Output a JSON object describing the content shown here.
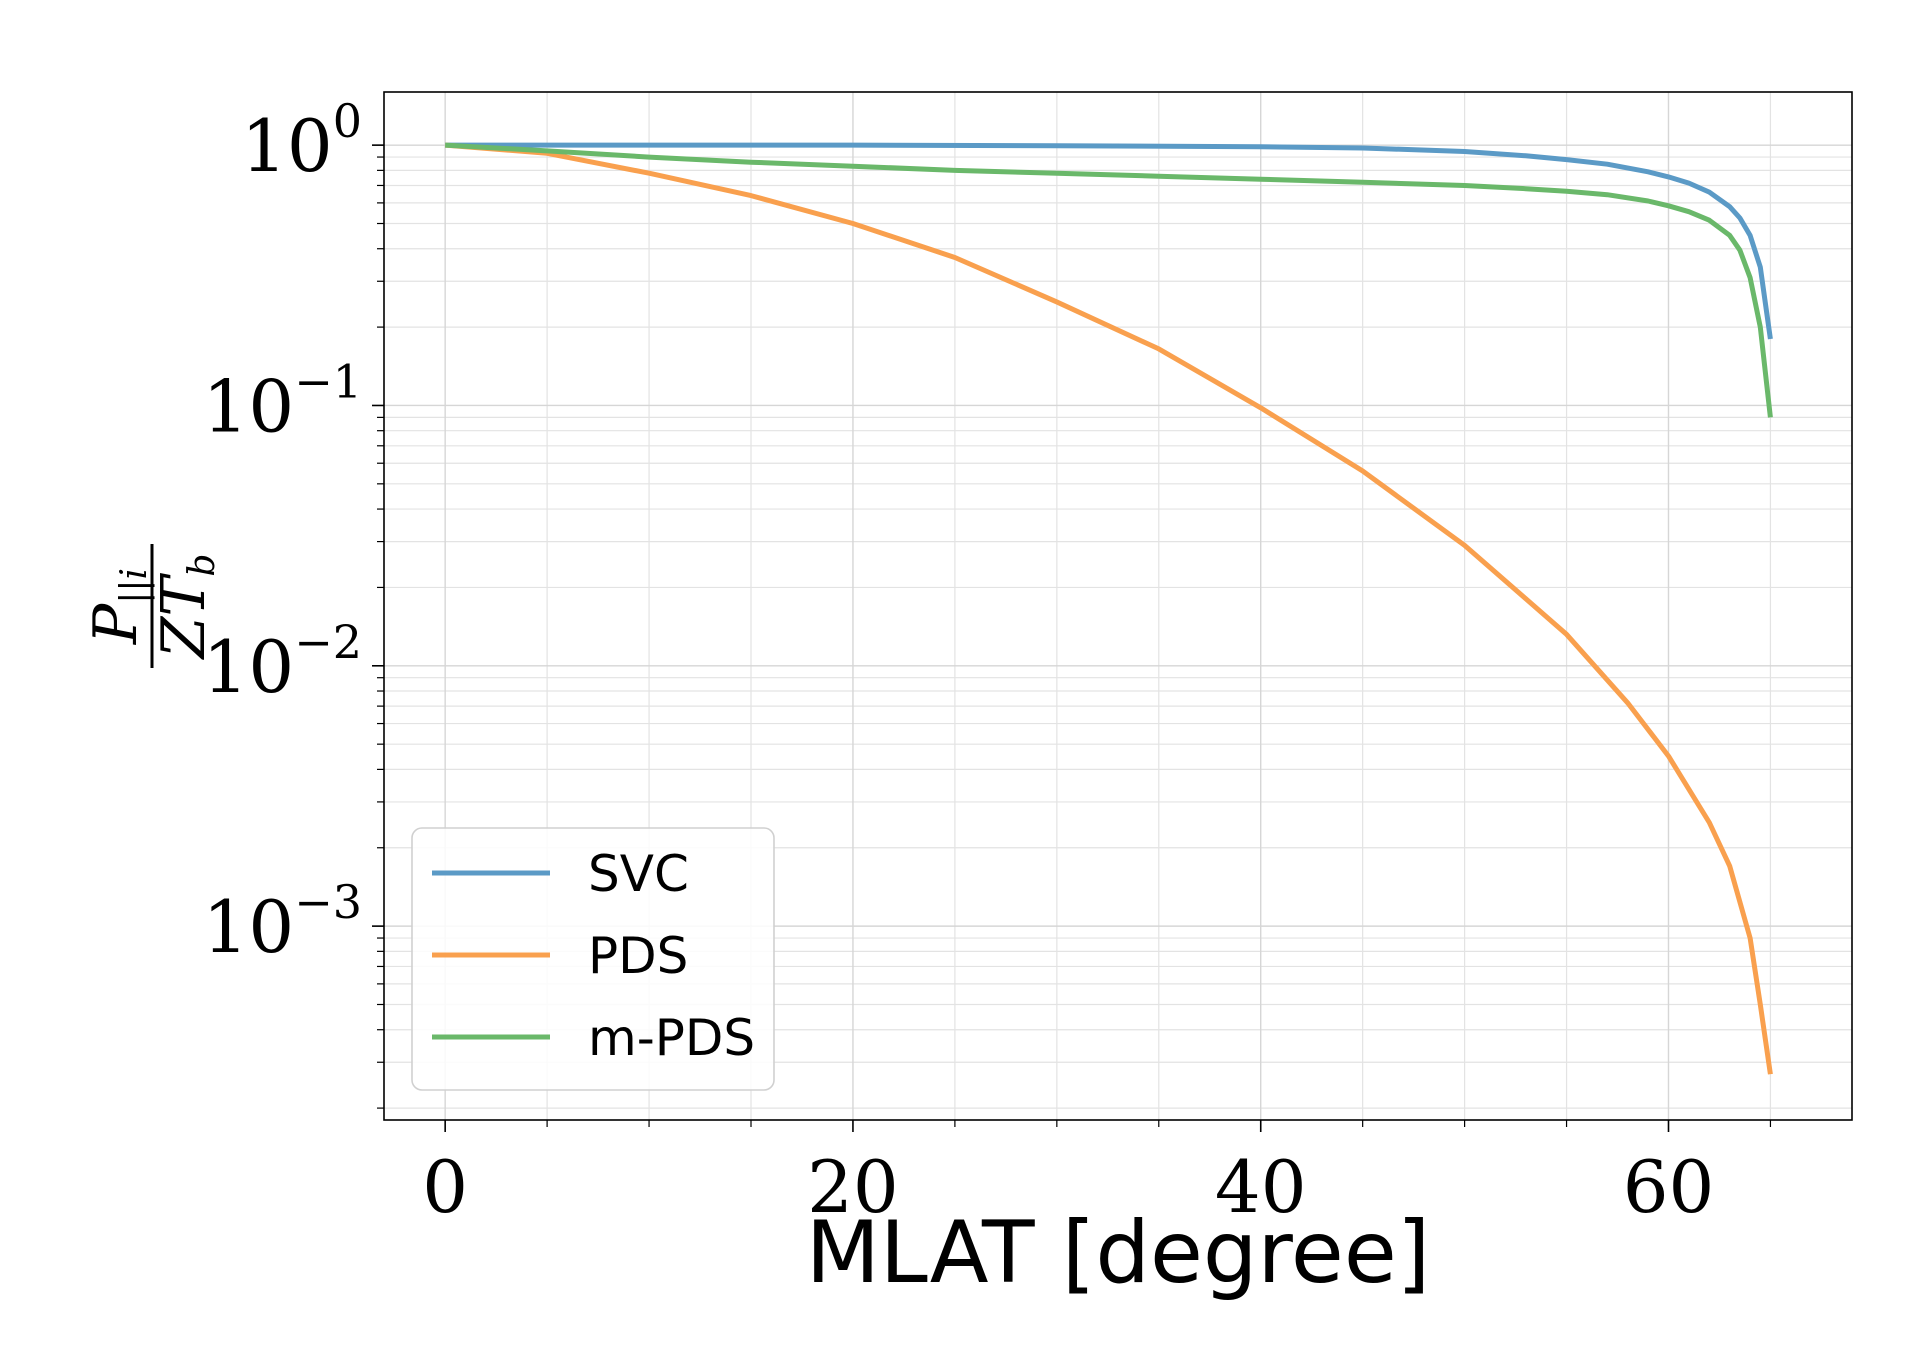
{
  "chart_data": {
    "type": "line",
    "xlabel": "MLAT [degree]",
    "ylabel": {
      "numerator": "P",
      "numerator_sub": "||i",
      "denominator": "ZT",
      "denominator_sub": "b"
    },
    "xlim": [
      -3,
      69
    ],
    "ylim": [
      0.00018,
      1.6
    ],
    "yscale": "log",
    "grid": true,
    "legend_position": "bottom-left",
    "x_ticks": [
      {
        "value": 0,
        "label": "0"
      },
      {
        "value": 20,
        "label": "20"
      },
      {
        "value": 40,
        "label": "40"
      },
      {
        "value": 60,
        "label": "60"
      }
    ],
    "y_ticks": [
      {
        "value": 1,
        "base": "10",
        "exp": "0"
      },
      {
        "value": 0.1,
        "base": "10",
        "exp": "−1"
      },
      {
        "value": 0.01,
        "base": "10",
        "exp": "−2"
      },
      {
        "value": 0.001,
        "base": "10",
        "exp": "−3"
      }
    ],
    "series": [
      {
        "name": "SVC",
        "color": "#5b9ac6",
        "x": [
          0,
          10,
          20,
          30,
          40,
          45,
          50,
          53,
          55,
          57,
          59,
          60,
          61,
          62,
          63,
          63.5,
          64,
          64.5,
          65
        ],
        "y": [
          1.0,
          1.0,
          1.0,
          0.995,
          0.985,
          0.975,
          0.945,
          0.91,
          0.88,
          0.845,
          0.79,
          0.755,
          0.715,
          0.66,
          0.58,
          0.525,
          0.45,
          0.34,
          0.18
        ]
      },
      {
        "name": "PDS",
        "color": "#f9a04e",
        "x": [
          0,
          5,
          10,
          15,
          20,
          25,
          30,
          35,
          40,
          45,
          50,
          55,
          58,
          60,
          62,
          63,
          64,
          64.5,
          65
        ],
        "y": [
          1.0,
          0.93,
          0.78,
          0.64,
          0.5,
          0.37,
          0.25,
          0.165,
          0.098,
          0.056,
          0.029,
          0.0132,
          0.0072,
          0.0045,
          0.0025,
          0.0017,
          0.0009,
          0.0005,
          0.00027
        ]
      },
      {
        "name": "m-PDS",
        "color": "#6ab86a",
        "x": [
          0,
          5,
          10,
          15,
          20,
          25,
          30,
          35,
          40,
          45,
          50,
          53,
          55,
          57,
          59,
          60,
          61,
          62,
          63,
          63.5,
          64,
          64.5,
          65
        ],
        "y": [
          1.0,
          0.95,
          0.9,
          0.86,
          0.83,
          0.8,
          0.78,
          0.76,
          0.74,
          0.72,
          0.7,
          0.68,
          0.665,
          0.645,
          0.61,
          0.585,
          0.555,
          0.515,
          0.45,
          0.395,
          0.31,
          0.2,
          0.09
        ]
      }
    ]
  }
}
